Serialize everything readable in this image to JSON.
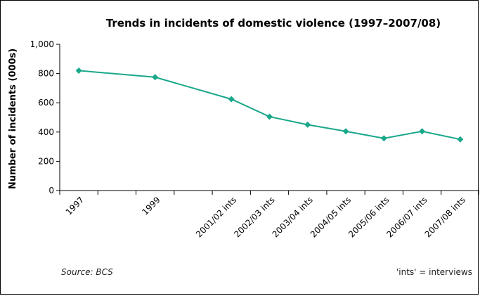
{
  "chart_data": {
    "type": "line",
    "title": "Trends in incidents of domestic violence (1997–2007/08)",
    "xlabel": "",
    "ylabel": "Number of incidents (000s)",
    "ylim": [
      0,
      1000
    ],
    "yticks": [
      "0",
      "200",
      "400",
      "600",
      "800",
      "1,000"
    ],
    "categories": [
      "1997",
      "",
      "1999",
      "",
      "2001/02 ints",
      "2002/03 ints",
      "2003/04 ints",
      "2004/05 ints",
      "2005/06 ints",
      "2006/07 ints",
      "2007/08 ints"
    ],
    "series": [
      {
        "values": [
          820,
          null,
          775,
          null,
          625,
          505,
          450,
          405,
          357,
          405,
          350
        ],
        "color": "#1aa88a"
      }
    ],
    "grid": false,
    "marker": "diamond"
  },
  "footer": {
    "source": "Source: BCS",
    "note": "'ints' = interviews"
  }
}
